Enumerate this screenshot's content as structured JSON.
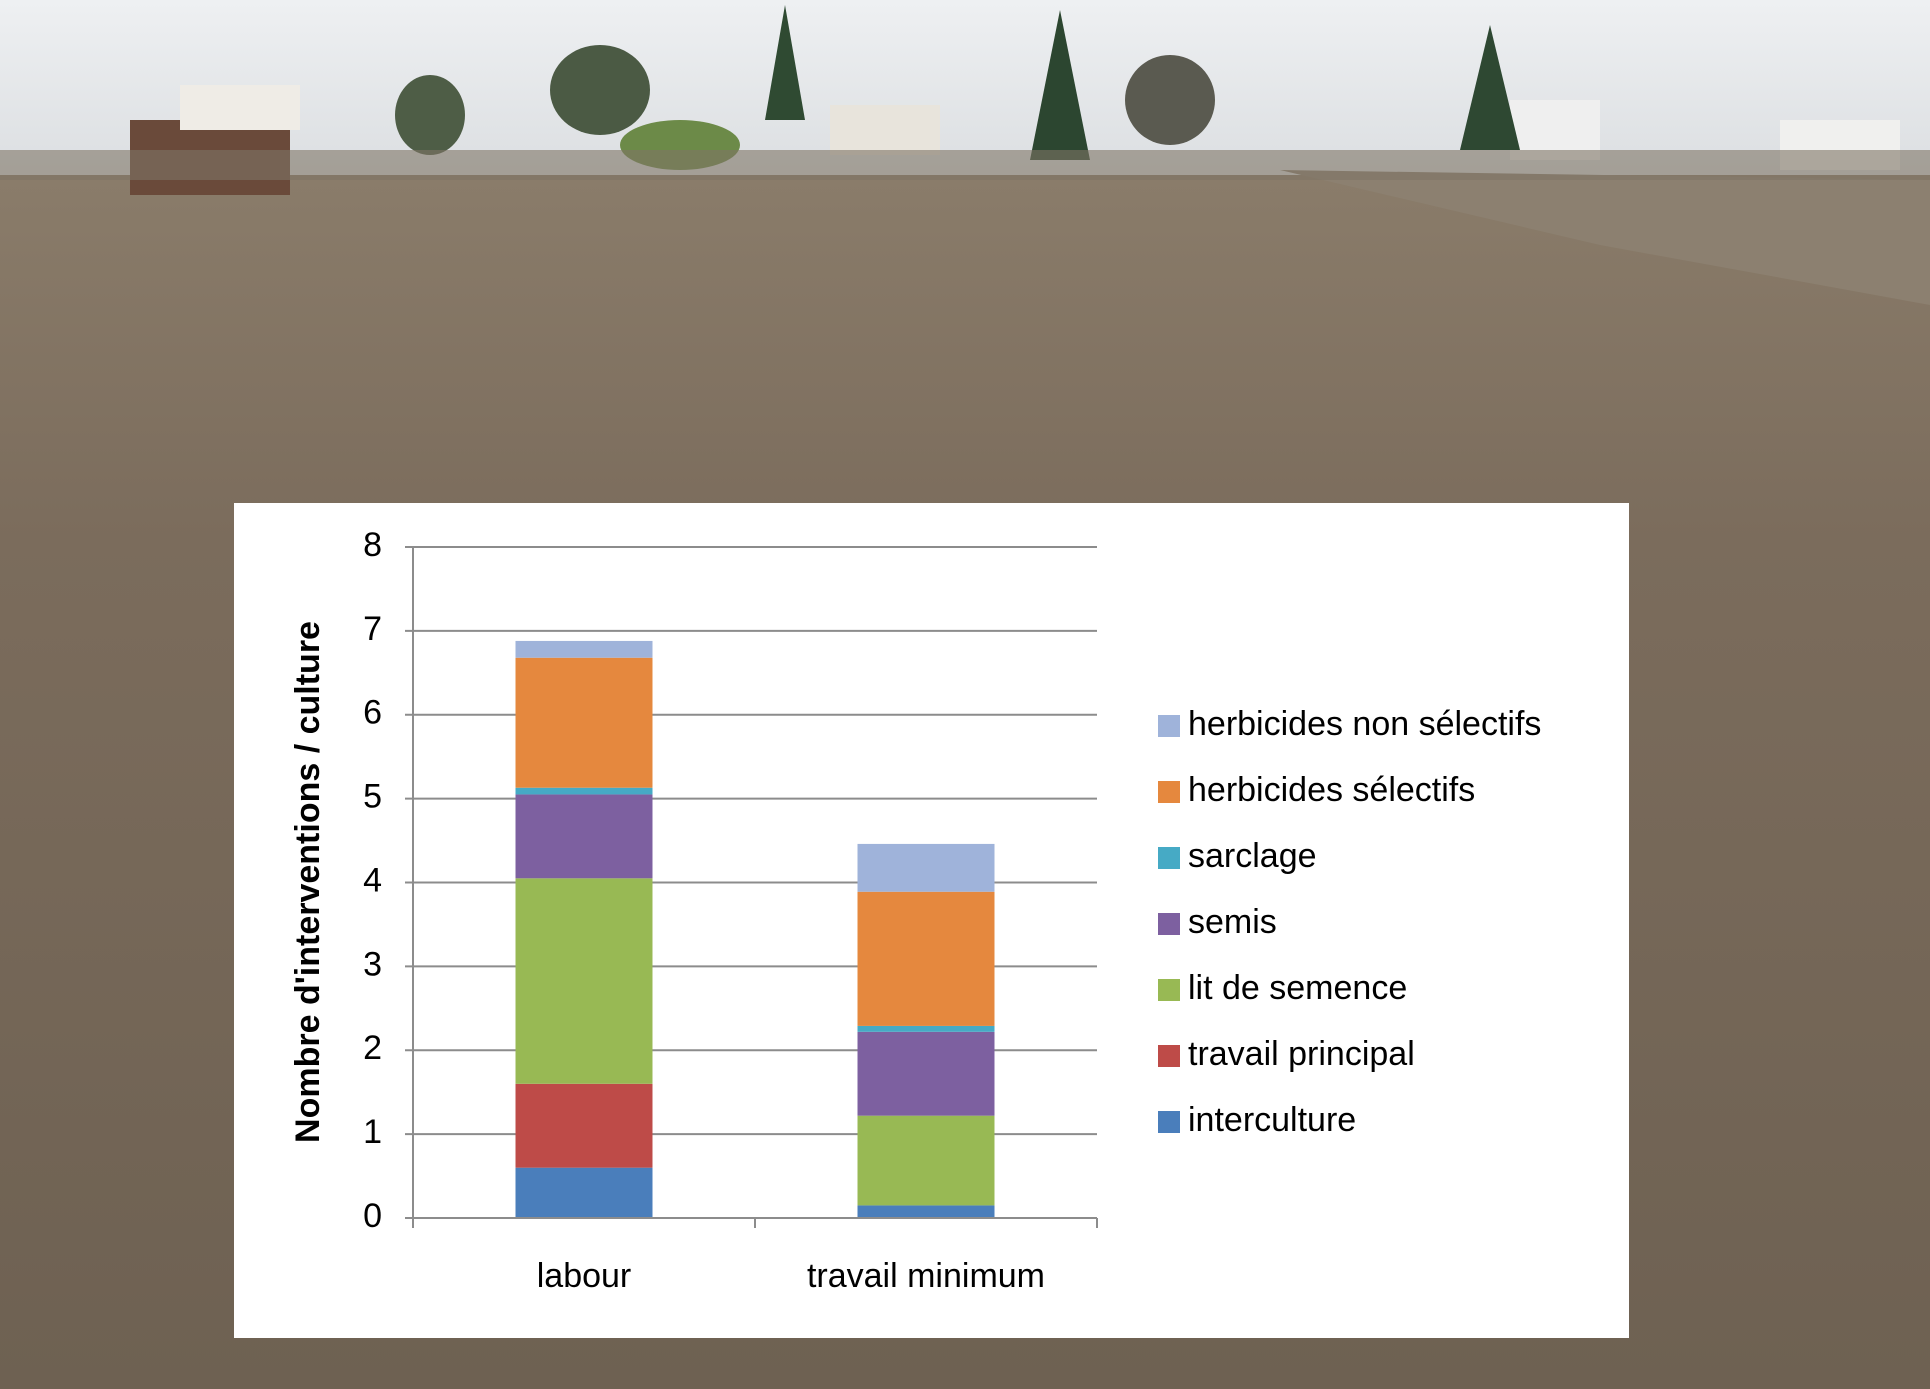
{
  "chart_data": {
    "type": "bar",
    "stacked": true,
    "y_label": "Nombre d'interventions  / culture",
    "categories": [
      "labour",
      "travail minimum"
    ],
    "series": [
      {
        "name": "interculture",
        "color": "#4a7ebb",
        "values": [
          0.6,
          0.15
        ]
      },
      {
        "name": "travail principal",
        "color": "#be4b48",
        "values": [
          1.0,
          0
        ]
      },
      {
        "name": "lit de semence",
        "color": "#98b954",
        "values": [
          2.45,
          1.07
        ]
      },
      {
        "name": "semis",
        "color": "#7d60a0",
        "values": [
          1.0,
          1.0
        ]
      },
      {
        "name": "sarclage",
        "color": "#46aac5",
        "values": [
          0.08,
          0.07
        ]
      },
      {
        "name": "herbicides sélectifs",
        "color": "#e5883e",
        "values": [
          1.55,
          1.6
        ]
      },
      {
        "name": "herbicides non sélectifs",
        "color": "#9fb3da",
        "values": [
          0.2,
          0.57
        ]
      }
    ],
    "ylim": [
      0,
      8
    ],
    "yticks": [
      0,
      1,
      2,
      3,
      4,
      5,
      6,
      7,
      8
    ],
    "grid": true,
    "legend": "right"
  }
}
